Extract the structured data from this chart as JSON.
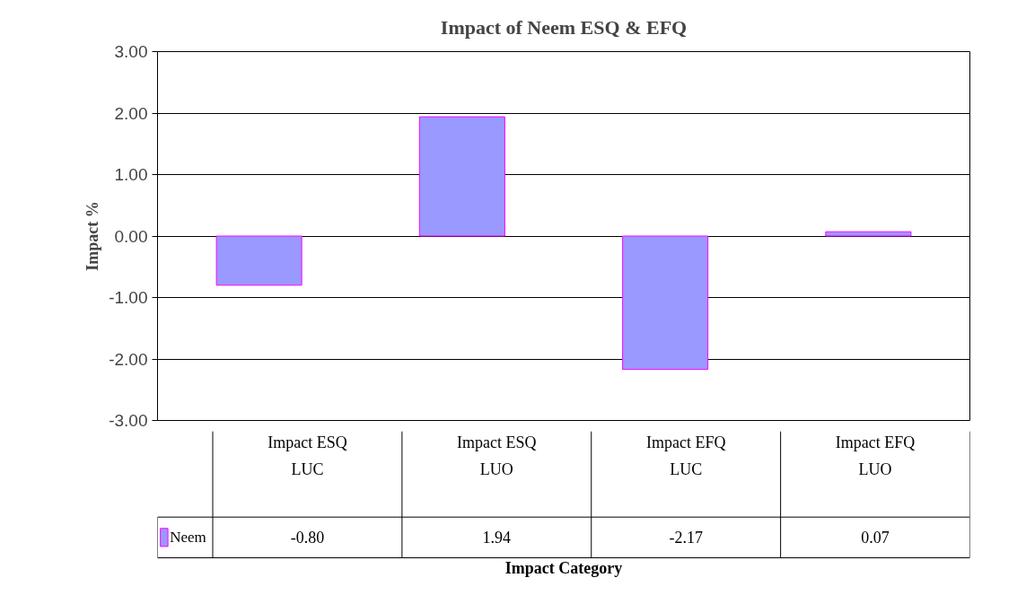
{
  "chart_data": {
    "type": "bar",
    "title": "Impact of Neem ESQ & EFQ",
    "xlabel": "Impact Category",
    "ylabel": "Impact %",
    "categories": [
      "Impact ESQ LUC",
      "Impact ESQ LUO",
      "Impact EFQ LUC",
      "Impact EFQ LUO"
    ],
    "series": [
      {
        "name": "Neem",
        "color": "#9999ff",
        "values": [
          -0.8,
          1.94,
          -2.17,
          0.07
        ],
        "value_labels": [
          "-0.80",
          "1.94",
          "-2.17",
          "0.07"
        ]
      }
    ],
    "ylim": [
      -3,
      3
    ],
    "yticks": [
      {
        "value": -3,
        "label": "-3.00"
      },
      {
        "value": -2,
        "label": "-2.00"
      },
      {
        "value": -1,
        "label": "-1.00"
      },
      {
        "value": 0,
        "label": "0.00"
      },
      {
        "value": 1,
        "label": "1.00"
      },
      {
        "value": 2,
        "label": "2.00"
      },
      {
        "value": 3,
        "label": "3.00"
      }
    ],
    "grid": "y",
    "legend": "bottom left"
  }
}
